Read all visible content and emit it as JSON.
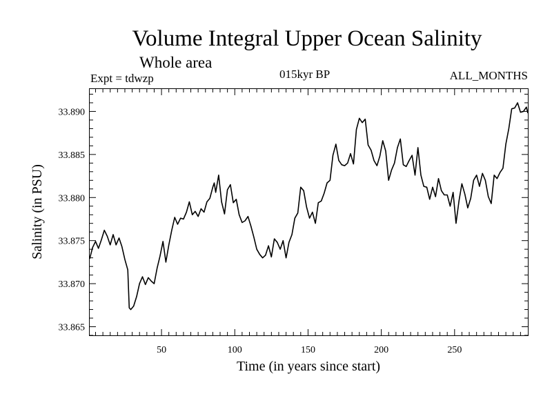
{
  "header": {
    "title": "Volume Integral Upper Ocean Salinity",
    "subtitle": "Whole area",
    "expt": "Expt = tdwzp",
    "period": "015kyr BP",
    "months": "ALL_MONTHS"
  },
  "chart_data": {
    "type": "line",
    "xlabel": "Time (in years since start)",
    "ylabel": "Salinity (in PSU)",
    "xlim": [
      1,
      300
    ],
    "ylim": [
      33.864,
      33.8926
    ],
    "x_ticks": [
      50,
      100,
      150,
      200,
      250
    ],
    "y_ticks": [
      33.865,
      33.87,
      33.875,
      33.88,
      33.885,
      33.89
    ],
    "y_tick_labels": [
      "33.865",
      "33.870",
      "33.875",
      "33.880",
      "33.885",
      "33.890"
    ],
    "grid": false,
    "series": [
      {
        "x": [
          1,
          3,
          5,
          7,
          9,
          11,
          13,
          15,
          17,
          19,
          21,
          23,
          25,
          27,
          28,
          29,
          31,
          33,
          35,
          37,
          39,
          41,
          43,
          45,
          47,
          49,
          51,
          53,
          55,
          57,
          59,
          61,
          63,
          65,
          67,
          69,
          71,
          73,
          75,
          77,
          79,
          81,
          83,
          85,
          86,
          87,
          89,
          91,
          93,
          95,
          97,
          99,
          101,
          103,
          105,
          107,
          109,
          111,
          113,
          115,
          117,
          119,
          121,
          123,
          125,
          127,
          129,
          131,
          133,
          135,
          137,
          139,
          141,
          143,
          145,
          147,
          149,
          151,
          153,
          155,
          157,
          159,
          161,
          163,
          165,
          167,
          169,
          171,
          173,
          175,
          177,
          179,
          181,
          183,
          185,
          187,
          189,
          191,
          193,
          195,
          197,
          199,
          201,
          203,
          205,
          207,
          209,
          211,
          213,
          215,
          217,
          219,
          221,
          223,
          225,
          227,
          229,
          231,
          233,
          235,
          237,
          239,
          241,
          243,
          245,
          247,
          249,
          251,
          253,
          255,
          257,
          259,
          261,
          263,
          265,
          267,
          269,
          271,
          273,
          275,
          277,
          279,
          281,
          283,
          285,
          287,
          289,
          291,
          293,
          295,
          297,
          299,
          300
        ],
        "y": [
          33.8729,
          33.8742,
          33.8749,
          33.8741,
          33.8751,
          33.8762,
          33.8755,
          33.8745,
          33.8757,
          33.8745,
          33.8753,
          33.8743,
          33.8728,
          33.8716,
          33.8672,
          33.867,
          33.8674,
          33.8685,
          33.87,
          33.8708,
          33.8699,
          33.8707,
          33.8703,
          33.87,
          33.8718,
          33.8732,
          33.8749,
          33.8725,
          33.8745,
          33.8762,
          33.8777,
          33.8769,
          33.8776,
          33.8775,
          33.8783,
          33.8795,
          33.878,
          33.8784,
          33.8778,
          33.8787,
          33.8783,
          33.8795,
          33.8799,
          33.8812,
          33.8817,
          33.8806,
          33.8826,
          33.8795,
          33.8781,
          33.8809,
          33.8815,
          33.8794,
          33.8798,
          33.878,
          33.8771,
          33.8773,
          33.8778,
          33.8767,
          33.8754,
          33.874,
          33.8734,
          33.873,
          33.8733,
          33.8744,
          33.8731,
          33.8752,
          33.8748,
          33.874,
          33.875,
          33.873,
          33.8748,
          33.8757,
          33.8776,
          33.8782,
          33.8812,
          33.8808,
          33.8789,
          33.8776,
          33.8783,
          33.877,
          33.8794,
          33.8796,
          33.8805,
          33.8817,
          33.882,
          33.8849,
          33.8862,
          33.8843,
          33.8838,
          33.8837,
          33.884,
          33.8851,
          33.8839,
          33.8879,
          33.8892,
          33.8887,
          33.8891,
          33.8861,
          33.8855,
          33.8843,
          33.8837,
          33.8848,
          33.8866,
          33.8854,
          33.882,
          33.8832,
          33.884,
          33.8858,
          33.8868,
          33.8838,
          33.8836,
          33.8843,
          33.8849,
          33.8826,
          33.8858,
          33.8826,
          33.8813,
          33.8812,
          33.8798,
          33.8812,
          33.8801,
          33.8822,
          33.8808,
          33.8803,
          33.8803,
          33.879,
          33.8806,
          33.877,
          33.8796,
          33.8816,
          33.8804,
          33.8788,
          33.8799,
          33.882,
          33.8826,
          33.8813,
          33.8828,
          33.882,
          33.8801,
          33.8793,
          33.8826,
          33.8822,
          33.8829,
          33.8834,
          33.8862,
          33.888,
          33.8903,
          33.8904,
          33.891,
          33.8899,
          33.89,
          33.8905,
          33.8898
        ]
      }
    ]
  }
}
